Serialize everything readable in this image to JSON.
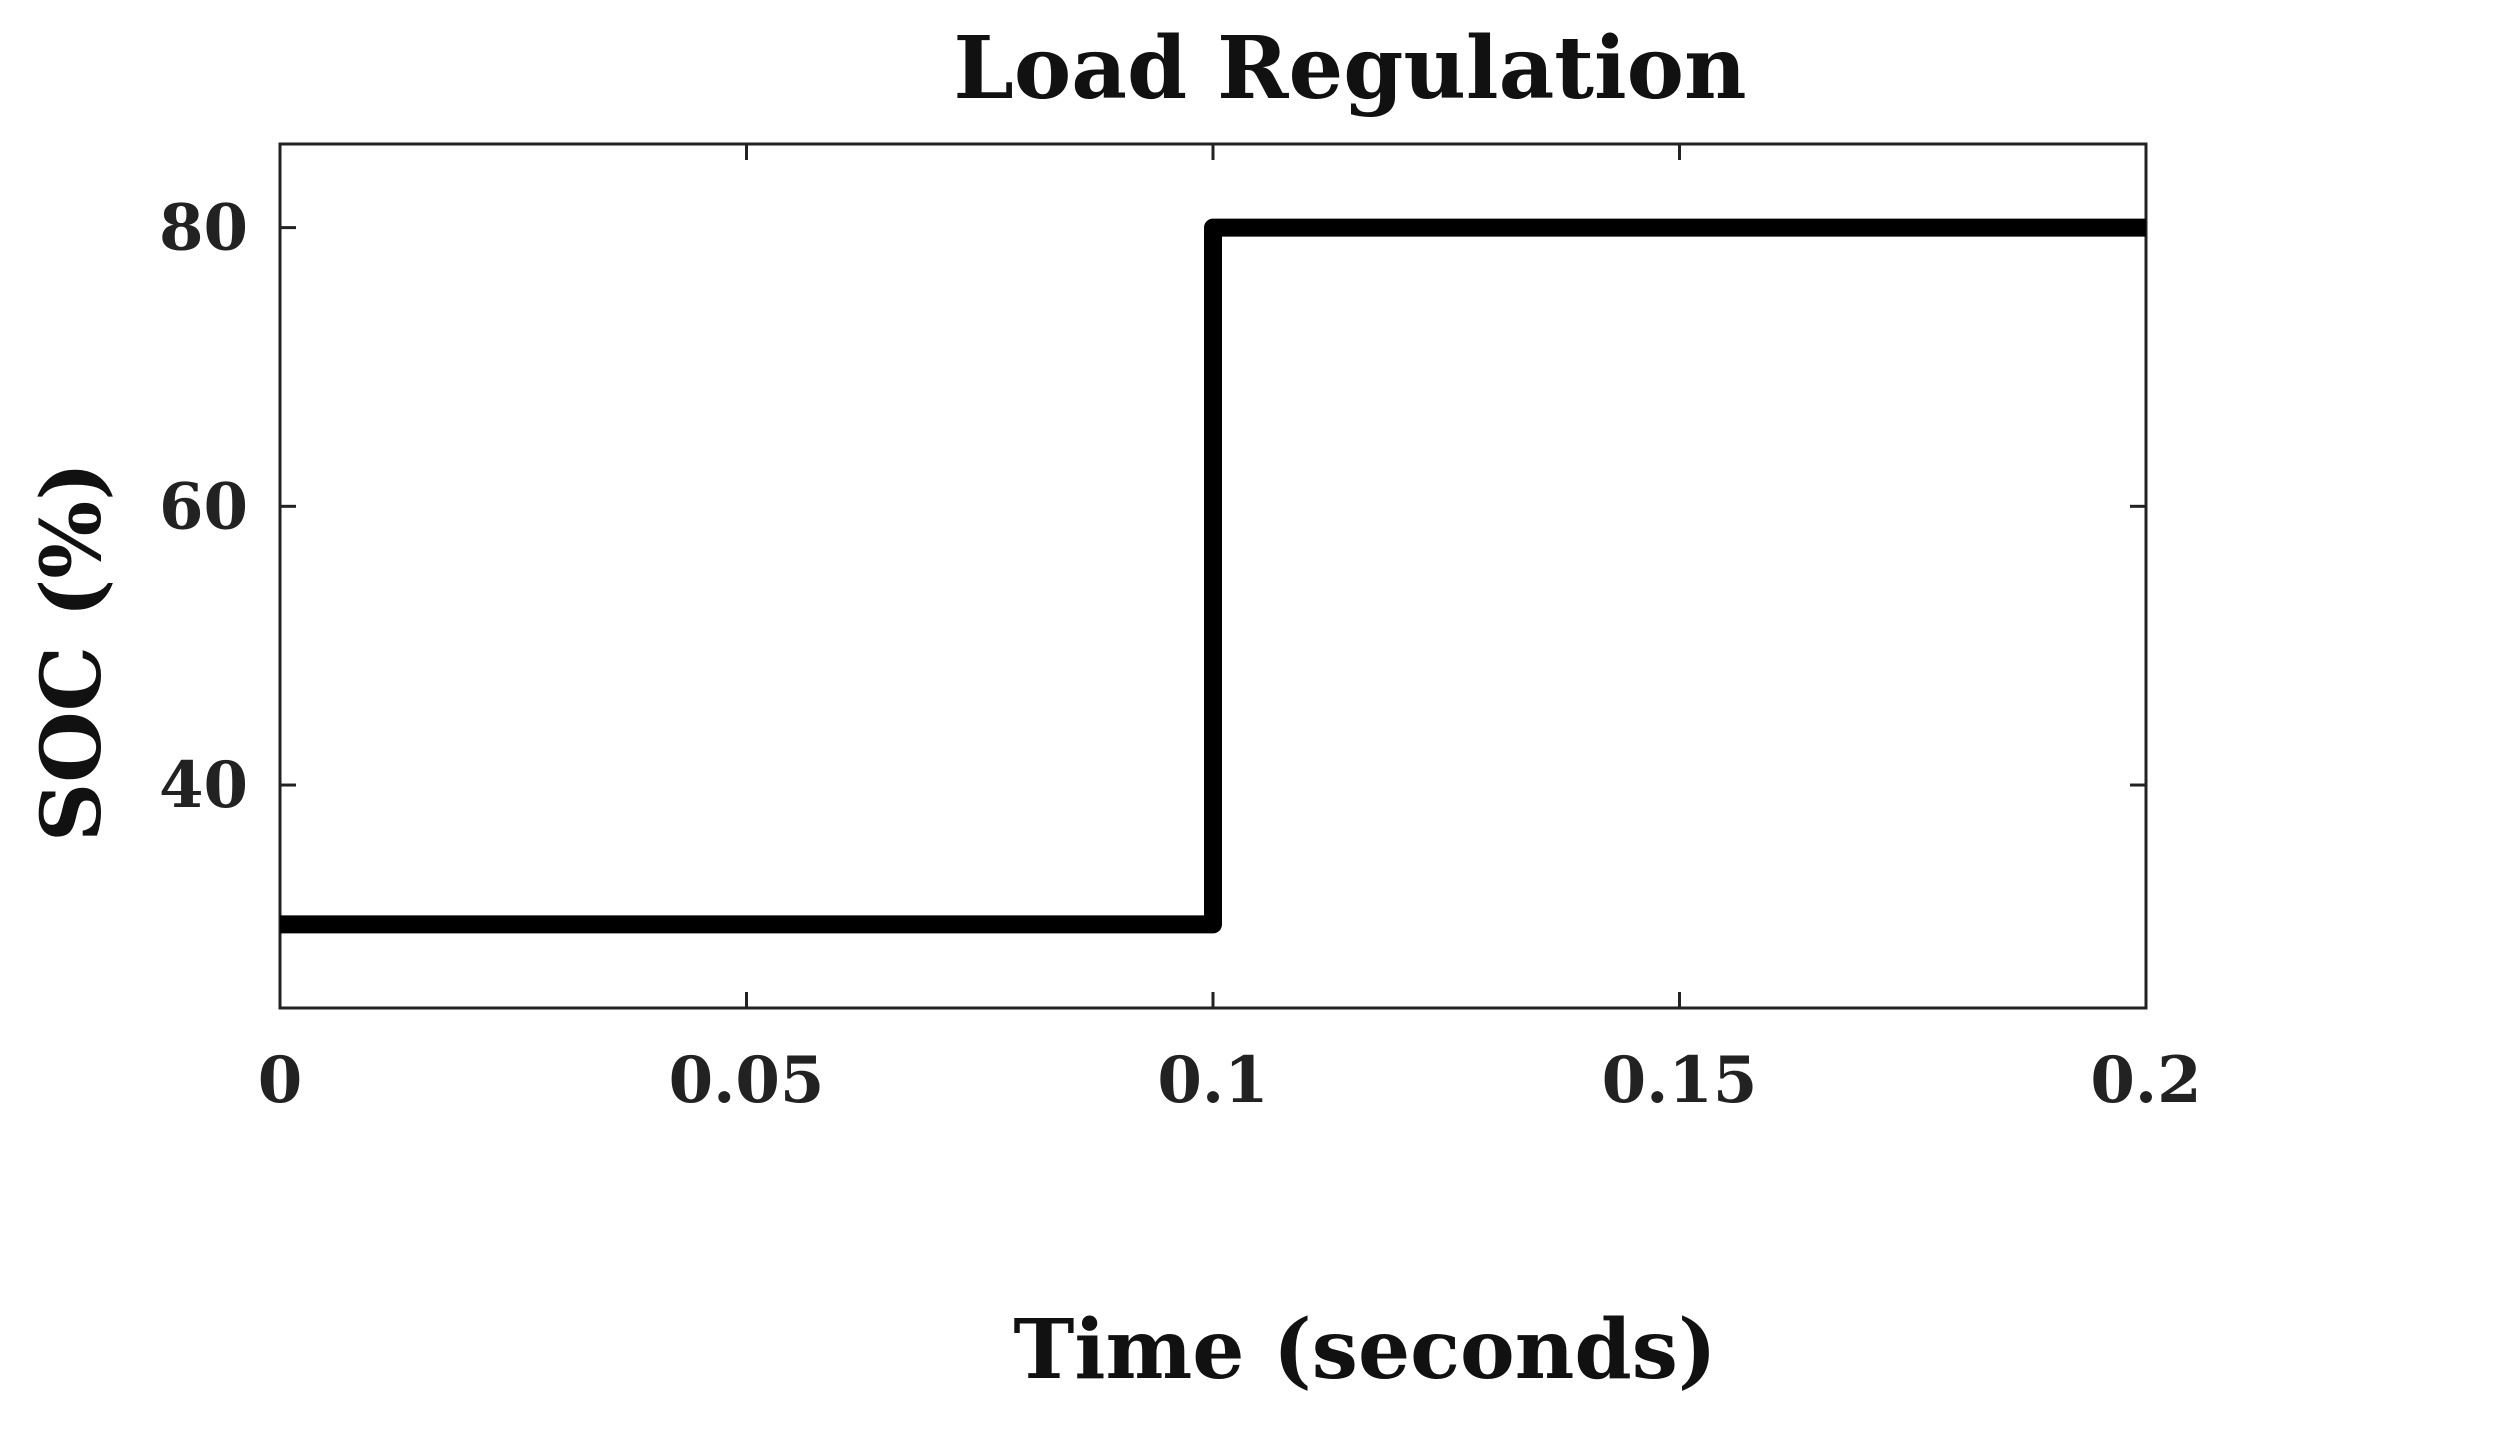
{
  "chart_data": {
    "type": "line",
    "title": "Load Regulation",
    "xlabel": "Time (seconds)",
    "ylabel": "SOC (%)",
    "xlim": [
      0,
      0.2
    ],
    "ylim": [
      24,
      86
    ],
    "xticks": [
      0,
      0.05,
      0.1,
      0.15,
      0.2
    ],
    "xtick_labels": [
      "0",
      "0.05",
      "0.1",
      "0.15",
      "0.2"
    ],
    "yticks": [
      40,
      60,
      80
    ],
    "ytick_labels": [
      "40",
      "60",
      "80"
    ],
    "grid": false,
    "legend": "none",
    "series": [
      {
        "color": "#000000",
        "points": [
          {
            "x": 0,
            "y": 30
          },
          {
            "x": 0.1,
            "y": 30
          },
          {
            "x": 0.1,
            "y": 80
          },
          {
            "x": 0.2,
            "y": 80
          }
        ]
      }
    ]
  }
}
